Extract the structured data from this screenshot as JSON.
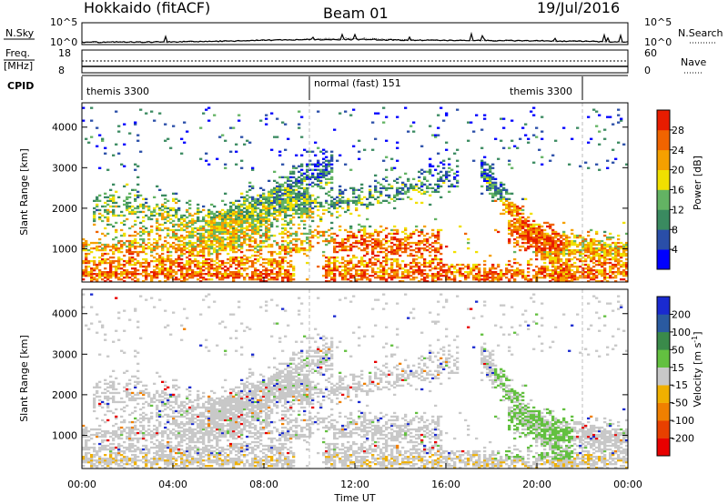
{
  "header": {
    "station": "Hokkaido (fitACF)",
    "beam": "Beam 01",
    "date": "19/Jul/2016"
  },
  "strip_labels": {
    "nsky": "N.Sky",
    "nsky_ticks": [
      "10^5",
      "10^0"
    ],
    "nsearch": "N.Search",
    "nsearch_ticks": [
      "10^5",
      "10^0"
    ],
    "freq": "Freq.",
    "freq_unit": "[MHz]",
    "freq_ticks": [
      "18",
      "8"
    ],
    "nave": "Nave",
    "nave_ticks": [
      "60",
      "0"
    ],
    "cpid": "CPID"
  },
  "cpid_segments": [
    {
      "label": "themis 3300",
      "start_h": 0,
      "end_h": 10
    },
    {
      "label": "normal (fast) 151",
      "start_h": 10,
      "end_h": 22
    },
    {
      "label": "themis 3300",
      "start_h": 22,
      "end_h": 24
    }
  ],
  "chart_data": [
    {
      "type": "heatmap",
      "name": "power",
      "xlabel": "",
      "ylabel": "Slant Range [km]",
      "xlim": [
        0,
        24
      ],
      "ylim": [
        180,
        4600
      ],
      "yticks": [
        1000,
        2000,
        3000,
        4000
      ],
      "colorbar": {
        "label": "Power [dB]",
        "ticks": [
          4,
          8,
          12,
          16,
          20,
          24,
          28
        ],
        "range": [
          0,
          32
        ],
        "colors": [
          "#0000ff",
          "#2a4ea8",
          "#3a8a60",
          "#63b363",
          "#f0e000",
          "#f5a000",
          "#f06400",
          "#e81c00"
        ]
      }
    },
    {
      "type": "heatmap",
      "name": "velocity",
      "xlabel": "Time UT",
      "ylabel": "Slant Range [km]",
      "xlim": [
        0,
        24
      ],
      "ylim": [
        180,
        4600
      ],
      "xticks": [
        "00:00",
        "04:00",
        "08:00",
        "12:00",
        "16:00",
        "20:00",
        "00:00"
      ],
      "yticks": [
        1000,
        2000,
        3000,
        4000
      ],
      "colorbar": {
        "label": "Velocity [m s",
        "label_sup": "-1",
        "label_close": "]",
        "ticks": [
          200,
          100,
          50,
          15,
          -15,
          -50,
          -100,
          -200
        ],
        "colors": [
          "#1a2ad0",
          "#2a5aa0",
          "#3a8a4a",
          "#63c040",
          "#c8c8c8",
          "#f0b000",
          "#f08000",
          "#e84000",
          "#e80000"
        ]
      }
    }
  ]
}
